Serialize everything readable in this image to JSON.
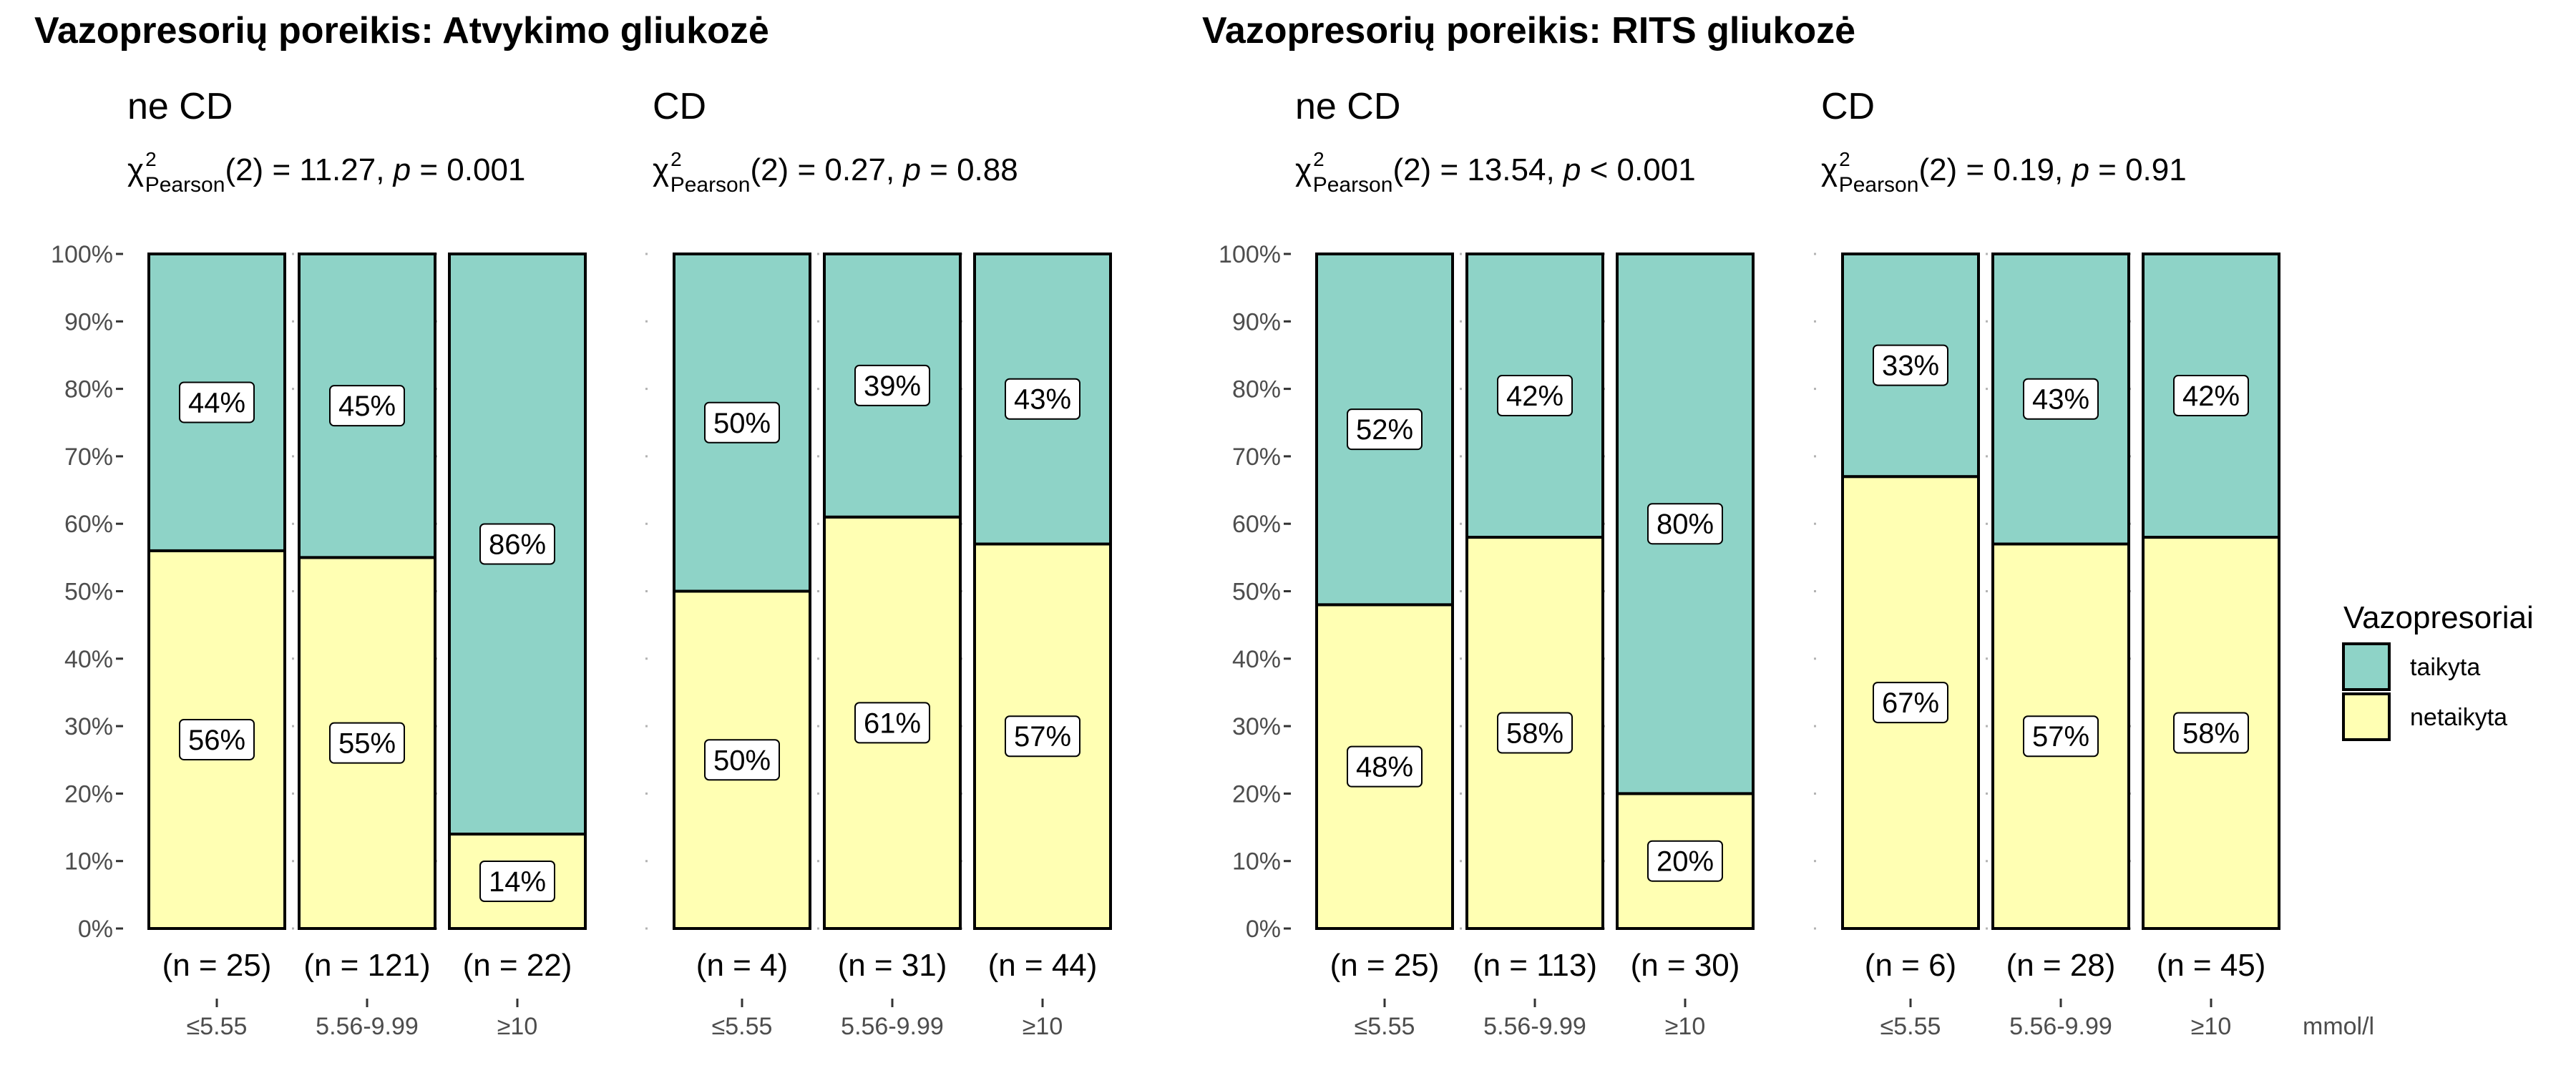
{
  "chart_data": [
    {
      "type": "bar",
      "stacked": true,
      "title": "Vazopresorių poreikis: Atvykimo gliukozė",
      "facets": [
        {
          "name": "ne CD",
          "stat": {
            "dof": "2",
            "value": "11.27",
            "op": "=",
            "p": "0.001"
          },
          "categories": [
            "≤5.55",
            "5.56-9.99",
            "≥10"
          ],
          "n_labels": [
            "(n = 25)",
            "(n = 121)",
            "(n = 22)"
          ],
          "series": [
            {
              "name": "taikyta",
              "values": [
                44,
                45,
                86
              ],
              "labels": [
                "44%",
                "45%",
                "86%"
              ]
            },
            {
              "name": "netaikyta",
              "values": [
                56,
                55,
                14
              ],
              "labels": [
                "56%",
                "55%",
                "14%"
              ]
            }
          ]
        },
        {
          "name": "CD",
          "stat": {
            "dof": "2",
            "value": "0.27",
            "op": "=",
            "p": "0.88"
          },
          "categories": [
            "≤5.55",
            "5.56-9.99",
            "≥10"
          ],
          "n_labels": [
            "(n = 4)",
            "(n = 31)",
            "(n = 44)"
          ],
          "series": [
            {
              "name": "taikyta",
              "values": [
                50,
                39,
                43
              ],
              "labels": [
                "50%",
                "39%",
                "43%"
              ]
            },
            {
              "name": "netaikyta",
              "values": [
                50,
                61,
                57
              ],
              "labels": [
                "50%",
                "61%",
                "57%"
              ]
            }
          ]
        }
      ]
    },
    {
      "type": "bar",
      "stacked": true,
      "title": "Vazopresorių poreikis: RITS gliukozė",
      "facets": [
        {
          "name": "ne CD",
          "stat": {
            "dof": "2",
            "value": "13.54",
            "op": "<",
            "p": "0.001"
          },
          "categories": [
            "≤5.55",
            "5.56-9.99",
            "≥10"
          ],
          "n_labels": [
            "(n = 25)",
            "(n = 113)",
            "(n = 30)"
          ],
          "series": [
            {
              "name": "taikyta",
              "values": [
                52,
                42,
                80
              ],
              "labels": [
                "52%",
                "42%",
                "80%"
              ]
            },
            {
              "name": "netaikyta",
              "values": [
                48,
                58,
                20
              ],
              "labels": [
                "48%",
                "58%",
                "20%"
              ]
            }
          ]
        },
        {
          "name": "CD",
          "stat": {
            "dof": "2",
            "value": "0.19",
            "op": "=",
            "p": "0.91"
          },
          "categories": [
            "≤5.55",
            "5.56-9.99",
            "≥10"
          ],
          "n_labels": [
            "(n = 6)",
            "(n = 28)",
            "(n = 45)"
          ],
          "series": [
            {
              "name": "taikyta",
              "values": [
                33,
                43,
                42
              ],
              "labels": [
                "33%",
                "43%",
                "42%"
              ]
            },
            {
              "name": "netaikyta",
              "values": [
                67,
                57,
                58
              ],
              "labels": [
                "67%",
                "57%",
                "58%"
              ]
            }
          ]
        }
      ]
    }
  ],
  "y_axis": {
    "ylim": [
      0,
      100
    ],
    "ticks": [
      "0%",
      "10%",
      "20%",
      "30%",
      "40%",
      "50%",
      "60%",
      "70%",
      "80%",
      "90%",
      "100%"
    ]
  },
  "stat_symbol": {
    "chi": "χ",
    "sup": "2",
    "sub": "Pearson",
    "p": "p"
  },
  "x_unit": "mmol/l",
  "legend": {
    "title": "Vazopresoriai",
    "placement": "right",
    "items": [
      {
        "name": "taikyta",
        "color": "#8ed3c7"
      },
      {
        "name": "netaikyta",
        "color": "#ffffb3"
      }
    ]
  },
  "colors": {
    "taikyta": "#8ed3c7",
    "netaikyta": "#ffffb3"
  }
}
